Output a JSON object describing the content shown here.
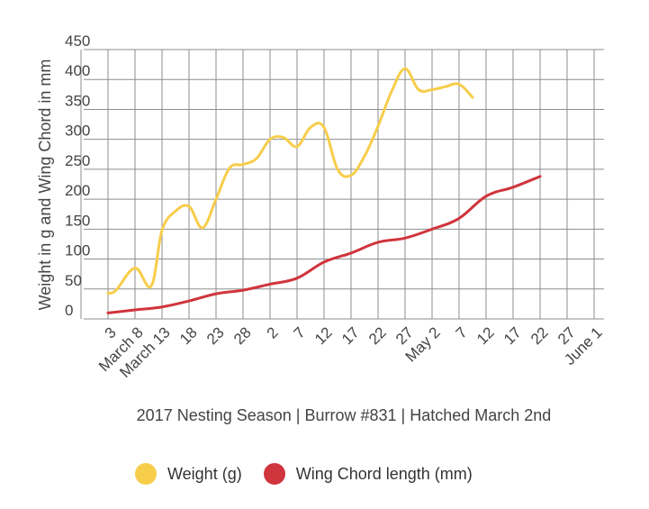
{
  "chart_data": {
    "type": "line",
    "xlabel": "2017 Nesting Season | Burrow #831 | Hatched March 2nd",
    "ylabel": "Weight in g and Wing Chord in mm",
    "ylim": [
      0,
      450
    ],
    "yticks": [
      0,
      50,
      100,
      150,
      200,
      250,
      300,
      350,
      400,
      450
    ],
    "grid": true,
    "legend_position": "bottom",
    "categories": [
      "3",
      "March 8",
      "March 13",
      "18",
      "23",
      "28",
      "2",
      "7",
      "12",
      "17",
      "22",
      "27",
      "May 2",
      "7",
      "12",
      "17",
      "22",
      "27",
      "June 1"
    ],
    "series": [
      {
        "name": "Weight (g)",
        "color": "#f7cd4a",
        "points": [
          [
            0,
            43
          ],
          [
            0.3,
            48
          ],
          [
            1,
            85
          ],
          [
            1.6,
            55
          ],
          [
            2,
            148
          ],
          [
            2.5,
            180
          ],
          [
            3,
            188
          ],
          [
            3.5,
            152
          ],
          [
            4,
            200
          ],
          [
            4.5,
            252
          ],
          [
            5,
            258
          ],
          [
            5.5,
            268
          ],
          [
            6,
            300
          ],
          [
            6.5,
            303
          ],
          [
            7,
            288
          ],
          [
            7.5,
            320
          ],
          [
            8,
            320
          ],
          [
            8.5,
            250
          ],
          [
            9,
            240
          ],
          [
            9.5,
            272
          ],
          [
            10,
            322
          ],
          [
            10.5,
            380
          ],
          [
            11,
            418
          ],
          [
            11.5,
            383
          ],
          [
            12,
            383
          ],
          [
            12.5,
            388
          ],
          [
            13,
            392
          ],
          [
            13.5,
            370
          ]
        ]
      },
      {
        "name": "Wing Chord length (mm)",
        "color": "#d0343c",
        "points": [
          [
            0,
            10
          ],
          [
            1,
            15
          ],
          [
            2,
            20
          ],
          [
            3,
            30
          ],
          [
            4,
            42
          ],
          [
            5,
            48
          ],
          [
            6,
            58
          ],
          [
            7,
            68
          ],
          [
            8,
            95
          ],
          [
            9,
            110
          ],
          [
            10,
            128
          ],
          [
            11,
            135
          ],
          [
            12,
            150
          ],
          [
            13,
            168
          ],
          [
            14,
            205
          ],
          [
            15,
            220
          ],
          [
            16,
            238
          ]
        ]
      }
    ]
  }
}
